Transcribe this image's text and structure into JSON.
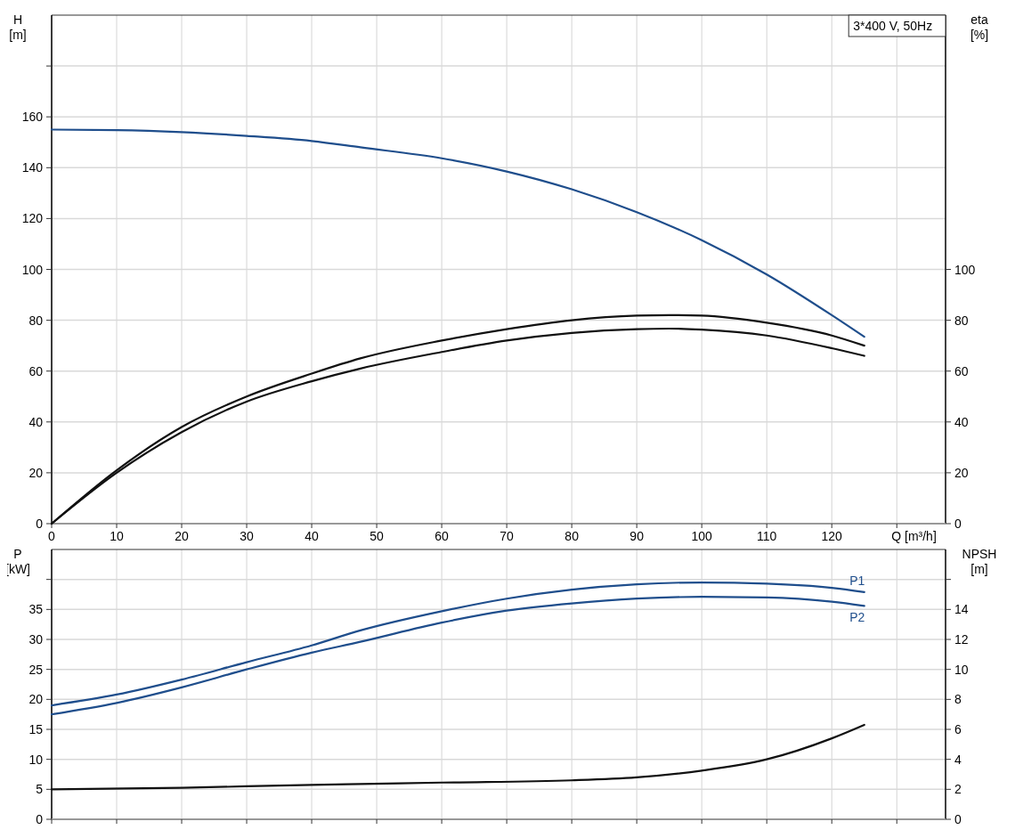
{
  "chart_data": [
    {
      "type": "line",
      "xlabel": "Q [m³/h]",
      "ylabel": "H\n[m]",
      "y2label": "eta\n[%]",
      "annotations": [
        "3*400 V, 50Hz"
      ],
      "xlim": [
        0,
        137.5
      ],
      "xticks": [
        0,
        10,
        20,
        30,
        40,
        50,
        60,
        70,
        80,
        90,
        100,
        110,
        120,
        {
          "value": 130,
          "label": null
        }
      ],
      "ylim": [
        0,
        200
      ],
      "yticks": [
        0,
        20,
        40,
        60,
        80,
        100,
        120,
        140,
        160,
        {
          "value": 180,
          "label": null
        }
      ],
      "y2lim": [
        0,
        200
      ],
      "y2ticks": [
        0,
        20,
        40,
        60,
        80,
        100
      ],
      "grid": true,
      "series": [
        {
          "color": "#1f4e8c",
          "x": [
            0,
            10,
            20,
            30,
            40,
            47.5,
            60,
            70,
            80,
            90,
            100,
            110,
            120,
            125
          ],
          "values": [
            155,
            154.8,
            154,
            152.5,
            150.5,
            148,
            143.7,
            138.5,
            131.5,
            122.5,
            111.5,
            98,
            82,
            73.5
          ]
        },
        {
          "color": "#111111",
          "axis": "y2",
          "x": [
            0,
            10,
            20,
            30,
            40,
            47.5,
            60,
            70,
            80,
            90,
            95,
            100,
            110,
            120,
            125
          ],
          "values": [
            0,
            21,
            38,
            50,
            59,
            65,
            72,
            76.5,
            80,
            81.8,
            82,
            81.8,
            79,
            74,
            70
          ]
        },
        {
          "color": "#111111",
          "axis": "y2",
          "x": [
            0,
            10,
            20,
            30,
            40,
            47.5,
            60,
            70,
            80,
            90,
            95,
            100,
            110,
            120,
            125
          ],
          "values": [
            0,
            20,
            36,
            48,
            56,
            61,
            67.5,
            72,
            75,
            76.5,
            76.7,
            76.3,
            74,
            69,
            66
          ]
        }
      ]
    },
    {
      "type": "line",
      "ylabel": "P\n[kW]",
      "y2label": "NPSH\n[m]",
      "tick_labels": "y",
      "xlim": [
        0,
        137.5
      ],
      "xticks": [
        0,
        10,
        20,
        30,
        40,
        50,
        60,
        70,
        80,
        90,
        100,
        110,
        120,
        130
      ],
      "ylim": [
        0,
        45
      ],
      "yticks": [
        0,
        5,
        10,
        15,
        20,
        25,
        30,
        35,
        {
          "value": 40,
          "label": null
        }
      ],
      "y2lim": [
        0,
        18
      ],
      "y2ticks": [
        0,
        2,
        4,
        6,
        8,
        10,
        12,
        14,
        {
          "value": 16,
          "label": null
        }
      ],
      "grid": true,
      "series": [
        {
          "name": "P1",
          "color": "#1f4e8c",
          "x": [
            0,
            10,
            20,
            30,
            40,
            47.5,
            60,
            70,
            80,
            90,
            100,
            110,
            120,
            125
          ],
          "values": [
            19,
            20.8,
            23.3,
            26.2,
            29,
            31.5,
            34.7,
            36.8,
            38.3,
            39.2,
            39.5,
            39.3,
            38.6,
            37.9
          ]
        },
        {
          "name": "P2",
          "color": "#1f4e8c",
          "x": [
            0,
            10,
            20,
            30,
            40,
            47.5,
            60,
            70,
            80,
            90,
            100,
            110,
            120,
            125
          ],
          "values": [
            17.5,
            19.4,
            22,
            25,
            27.8,
            29.6,
            32.8,
            34.8,
            36,
            36.8,
            37.1,
            37,
            36.3,
            35.6
          ]
        },
        {
          "color": "#111111",
          "axis": "y2",
          "x": [
            0,
            20,
            40,
            47.5,
            60,
            80,
            90,
            100,
            110,
            120,
            125
          ],
          "values": [
            2,
            2.1,
            2.3,
            2.35,
            2.45,
            2.6,
            2.8,
            3.25,
            4,
            5.4,
            6.3
          ]
        }
      ]
    }
  ]
}
